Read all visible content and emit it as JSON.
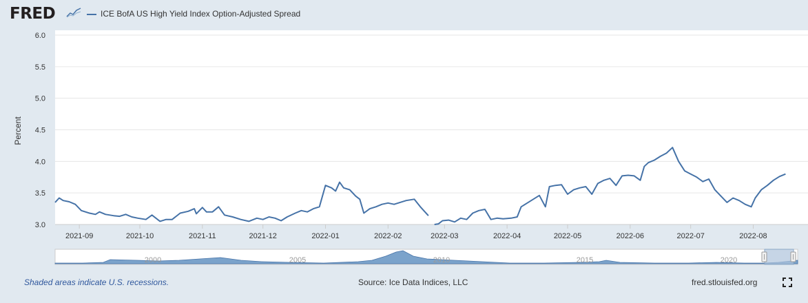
{
  "header": {
    "logo_text": "FRED",
    "series_label": "ICE BofA US High Yield Index Option-Adjusted Spread",
    "series_color": "#4572a7"
  },
  "chart_data": {
    "type": "line",
    "title": "",
    "xlabel": "",
    "ylabel": "Percent",
    "ylim": [
      3.0,
      6.0
    ],
    "yticks": [
      "3.0",
      "3.5",
      "4.0",
      "4.5",
      "5.0",
      "5.5",
      "6.0"
    ],
    "xticks": [
      {
        "label": "2021-09",
        "x": "2021-09-01"
      },
      {
        "label": "2021-10",
        "x": "2021-10-01"
      },
      {
        "label": "2021-11",
        "x": "2021-11-01"
      },
      {
        "label": "2021-12",
        "x": "2021-12-01"
      },
      {
        "label": "2022-01",
        "x": "2022-01-01"
      },
      {
        "label": "2022-02",
        "x": "2022-02-01"
      },
      {
        "label": "2022-03",
        "x": "2022-03-01"
      },
      {
        "label": "2022-04",
        "x": "2022-04-01"
      },
      {
        "label": "2022-05",
        "x": "2022-05-01"
      },
      {
        "label": "2022-06",
        "x": "2022-06-01"
      },
      {
        "label": "2022-07",
        "x": "2022-07-01"
      },
      {
        "label": "2022-08",
        "x": "2022-08-01"
      }
    ],
    "xlim": [
      "2021-08-20",
      "2022-08-22"
    ],
    "grid": true,
    "series": [
      {
        "name": "ICE BofA US High Yield Index Option-Adjusted Spread",
        "color": "#4572a7",
        "points": [
          [
            "2021-08-20",
            3.35
          ],
          [
            "2021-08-22",
            3.42
          ],
          [
            "2021-08-24",
            3.38
          ],
          [
            "2021-08-27",
            3.36
          ],
          [
            "2021-08-30",
            3.32
          ],
          [
            "2021-09-02",
            3.22
          ],
          [
            "2021-09-06",
            3.18
          ],
          [
            "2021-09-09",
            3.16
          ],
          [
            "2021-09-11",
            3.2
          ],
          [
            "2021-09-14",
            3.16
          ],
          [
            "2021-09-18",
            3.14
          ],
          [
            "2021-09-21",
            3.13
          ],
          [
            "2021-09-24",
            3.16
          ],
          [
            "2021-09-27",
            3.12
          ],
          [
            "2021-09-30",
            3.1
          ],
          [
            "2021-10-04",
            3.08
          ],
          [
            "2021-10-07",
            3.15
          ],
          [
            "2021-10-11",
            3.05
          ],
          [
            "2021-10-14",
            3.08
          ],
          [
            "2021-10-17",
            3.08
          ],
          [
            "2021-10-21",
            3.18
          ],
          [
            "2021-10-25",
            3.21
          ],
          [
            "2021-10-28",
            3.25
          ],
          [
            "2021-10-29",
            3.17
          ],
          [
            "2021-11-01",
            3.27
          ],
          [
            "2021-11-03",
            3.2
          ],
          [
            "2021-11-06",
            3.2
          ],
          [
            "2021-11-09",
            3.28
          ],
          [
            "2021-11-12",
            3.15
          ],
          [
            "2021-11-16",
            3.12
          ],
          [
            "2021-11-20",
            3.08
          ],
          [
            "2021-11-24",
            3.05
          ],
          [
            "2021-11-28",
            3.1
          ],
          [
            "2021-12-01",
            3.08
          ],
          [
            "2021-12-04",
            3.12
          ],
          [
            "2021-12-07",
            3.1
          ],
          [
            "2021-12-10",
            3.06
          ],
          [
            "2021-12-13",
            3.12
          ],
          [
            "2021-12-17",
            3.18
          ],
          [
            "2021-12-20",
            3.22
          ],
          [
            "2021-12-23",
            3.2
          ],
          [
            "2021-12-26",
            3.25
          ],
          [
            "2021-12-29",
            3.28
          ],
          [
            "2022-01-01",
            3.62
          ],
          [
            "2022-01-04",
            3.58
          ],
          [
            "2022-01-06",
            3.53
          ],
          [
            "2022-01-08",
            3.67
          ],
          [
            "2022-01-10",
            3.58
          ],
          [
            "2022-01-13",
            3.55
          ],
          [
            "2022-01-16",
            3.45
          ],
          [
            "2022-01-18",
            3.4
          ],
          [
            "2022-01-20",
            3.18
          ],
          [
            "2022-01-23",
            3.25
          ],
          [
            "2022-01-26",
            3.28
          ],
          [
            "2022-01-29",
            3.32
          ],
          [
            "2022-02-01",
            3.34
          ],
          [
            "2022-02-04",
            3.32
          ],
          [
            "2022-02-07",
            3.35
          ],
          [
            "2022-02-10",
            3.38
          ],
          [
            "2022-02-14",
            3.4
          ],
          [
            "2022-02-17",
            3.28
          ],
          [
            "2022-02-21",
            3.14
          ]
        ]
      },
      {
        "name": "ICE BofA US High Yield Index Option-Adjusted Spread",
        "color": "#4572a7",
        "points": [
          [
            "2022-02-24",
            3.0
          ],
          [
            "2022-02-26",
            3.01
          ],
          [
            "2022-02-28",
            3.06
          ],
          [
            "2022-03-03",
            3.07
          ],
          [
            "2022-03-06",
            3.04
          ],
          [
            "2022-03-09",
            3.1
          ],
          [
            "2022-03-12",
            3.08
          ],
          [
            "2022-03-15",
            3.18
          ],
          [
            "2022-03-18",
            3.22
          ],
          [
            "2022-03-21",
            3.24
          ],
          [
            "2022-03-24",
            3.08
          ],
          [
            "2022-03-27",
            3.1
          ],
          [
            "2022-03-30",
            3.09
          ],
          [
            "2022-04-03",
            3.1
          ],
          [
            "2022-04-06",
            3.12
          ],
          [
            "2022-04-08",
            3.28
          ],
          [
            "2022-04-11",
            3.34
          ],
          [
            "2022-04-14",
            3.4
          ],
          [
            "2022-04-17",
            3.46
          ],
          [
            "2022-04-20",
            3.28
          ],
          [
            "2022-04-22",
            3.6
          ],
          [
            "2022-04-25",
            3.62
          ],
          [
            "2022-04-28",
            3.63
          ],
          [
            "2022-05-01",
            3.48
          ],
          [
            "2022-05-04",
            3.55
          ],
          [
            "2022-05-07",
            3.58
          ],
          [
            "2022-05-10",
            3.6
          ],
          [
            "2022-05-13",
            3.48
          ],
          [
            "2022-05-16",
            3.65
          ],
          [
            "2022-05-19",
            3.7
          ],
          [
            "2022-05-22",
            3.73
          ],
          [
            "2022-05-25",
            3.62
          ],
          [
            "2022-05-28",
            3.77
          ],
          [
            "2022-05-31",
            3.78
          ],
          [
            "2022-06-03",
            3.77
          ],
          [
            "2022-06-06",
            3.7
          ],
          [
            "2022-06-08",
            3.92
          ],
          [
            "2022-06-10",
            3.98
          ],
          [
            "2022-06-13",
            4.02
          ],
          [
            "2022-06-16",
            4.08
          ],
          [
            "2022-06-19",
            4.13
          ],
          [
            "2022-06-22",
            4.22
          ],
          [
            "2022-06-25",
            4.0
          ],
          [
            "2022-06-28",
            3.85
          ],
          [
            "2022-07-01",
            3.8
          ],
          [
            "2022-07-04",
            3.75
          ],
          [
            "2022-07-07",
            3.68
          ],
          [
            "2022-07-10",
            3.72
          ],
          [
            "2022-07-13",
            3.55
          ],
          [
            "2022-07-16",
            3.45
          ],
          [
            "2022-07-19",
            3.35
          ],
          [
            "2022-07-22",
            3.42
          ],
          [
            "2022-07-25",
            3.38
          ],
          [
            "2022-07-28",
            3.32
          ],
          [
            "2022-07-31",
            3.28
          ],
          [
            "2022-08-02",
            3.42
          ],
          [
            "2022-08-05",
            3.55
          ],
          [
            "2022-08-08",
            3.62
          ],
          [
            "2022-08-11",
            3.7
          ],
          [
            "2022-08-14",
            3.76
          ],
          [
            "2022-08-17",
            3.8
          ]
        ]
      }
    ]
  },
  "navigator": {
    "year_labels": [
      "2000",
      "2005",
      "2010",
      "2015",
      "2020"
    ]
  },
  "footer": {
    "recession_note": "Shaded areas indicate U.S. recessions.",
    "source": "Source: Ice Data Indices, LLC",
    "site": "fred.stlouisfed.org"
  }
}
